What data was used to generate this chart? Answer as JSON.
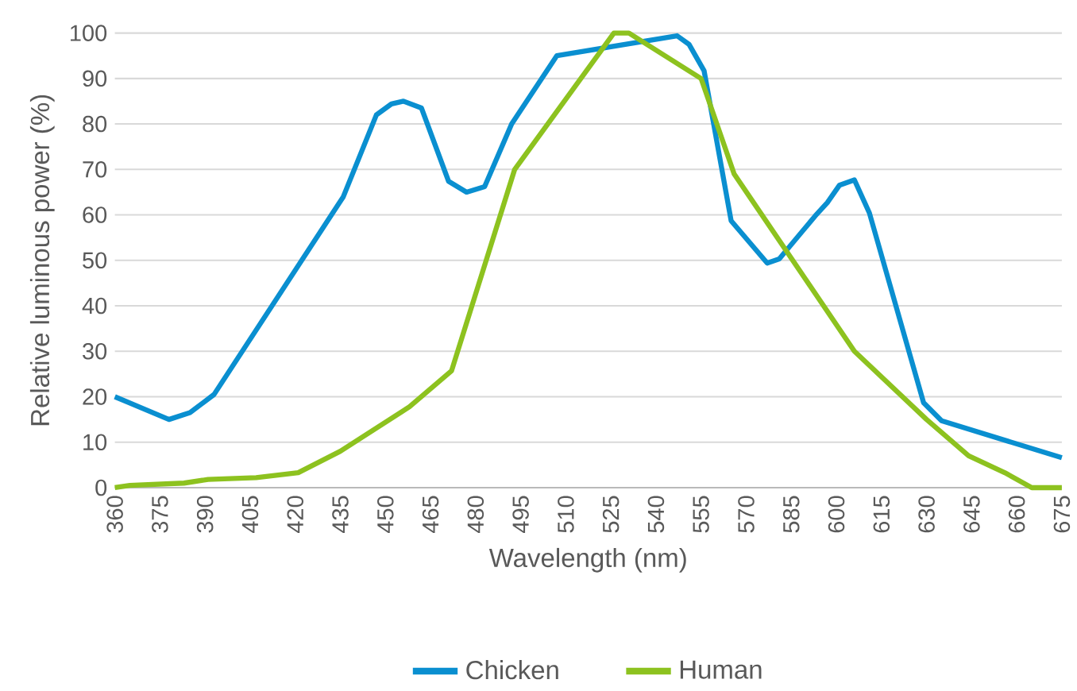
{
  "chart_data": {
    "type": "line",
    "xlabel": "Wavelength (nm)",
    "ylabel": "Relative luminous power (%)",
    "xlim": [
      360,
      675
    ],
    "xticks": [
      360,
      375,
      390,
      405,
      420,
      435,
      450,
      465,
      480,
      495,
      510,
      525,
      540,
      555,
      570,
      585,
      600,
      615,
      630,
      645,
      660,
      675
    ],
    "ylim": [
      0,
      100
    ],
    "yticks": [
      0,
      10,
      20,
      30,
      40,
      50,
      60,
      70,
      80,
      90,
      100
    ],
    "grid": "y",
    "legend": "bottom",
    "marker": "none",
    "line_style": "solid",
    "series": [
      {
        "name": "Chicken",
        "color": "#0a8fd0",
        "x": [
          360,
          378,
          385,
          393,
          436,
          447,
          452,
          456,
          462,
          471,
          477,
          483,
          492,
          507,
          547,
          551,
          556,
          565,
          577,
          581,
          593,
          597,
          601,
          606,
          611,
          629,
          635,
          675
        ],
        "values": [
          20,
          15,
          16.5,
          20.5,
          64,
          82,
          84.4,
          85,
          83.5,
          67.4,
          65,
          66.2,
          80,
          95,
          99.4,
          97.5,
          91.7,
          58.7,
          49.4,
          50.3,
          59.8,
          62.7,
          66.5,
          67.7,
          60.4,
          18.7,
          14.7,
          6.6
        ]
      },
      {
        "name": "Human",
        "color": "#8dc21f",
        "x": [
          360,
          365,
          383,
          391,
          407,
          421,
          435,
          458,
          472,
          493,
          526,
          531,
          555,
          566,
          606,
          630,
          644,
          656,
          665,
          675
        ],
        "values": [
          0,
          0.5,
          1,
          1.8,
          2.2,
          3.3,
          8,
          17.8,
          25.7,
          70,
          100,
          100,
          90,
          69,
          30,
          15,
          7,
          3.3,
          0,
          0
        ]
      }
    ]
  }
}
